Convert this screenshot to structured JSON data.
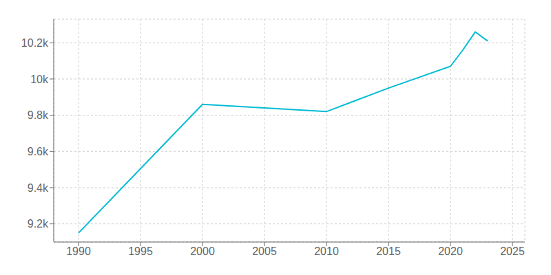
{
  "chart_data": {
    "type": "line",
    "x": [
      1990,
      2000,
      2005,
      2010,
      2015,
      2020,
      2021,
      2022,
      2023
    ],
    "values": [
      9150,
      9860,
      9840,
      9820,
      9950,
      10070,
      10160,
      10260,
      10210
    ],
    "color": "#00bcd4",
    "xlim": [
      1988,
      2026
    ],
    "ylim": [
      9100,
      10330
    ],
    "xticks": [
      1990,
      1995,
      2000,
      2005,
      2010,
      2015,
      2020,
      2025
    ],
    "yticks": [
      {
        "value": 9200,
        "label": "9.2k"
      },
      {
        "value": 9400,
        "label": "9.4k"
      },
      {
        "value": 9600,
        "label": "9.6k"
      },
      {
        "value": 9800,
        "label": "9.8k"
      },
      {
        "value": 10000,
        "label": "10k"
      },
      {
        "value": 10200,
        "label": "10.2k"
      }
    ],
    "grid": true
  }
}
